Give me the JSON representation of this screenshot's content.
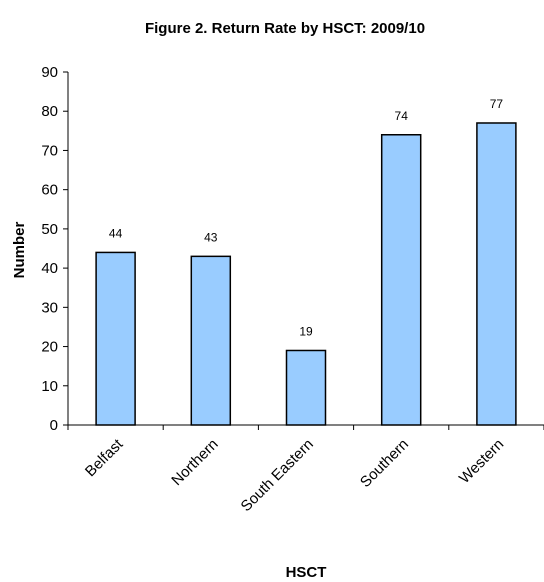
{
  "chart_data": {
    "type": "bar",
    "title": "Figure 2.  Return Rate by HSCT: 2009/10",
    "xlabel": "HSCT",
    "ylabel": "Number",
    "categories": [
      "Belfast",
      "Northern",
      "South Eastern",
      "Southern",
      "Western"
    ],
    "values": [
      44,
      43,
      19,
      74,
      77
    ],
    "data_labels": [
      "44",
      "43",
      "19",
      "74",
      "77"
    ],
    "ylim": [
      0,
      90
    ],
    "yticks": [
      0,
      10,
      20,
      30,
      40,
      50,
      60,
      70,
      80,
      90
    ],
    "ytick_labels": [
      "0",
      "10",
      "20",
      "30",
      "40",
      "50",
      "60",
      "70",
      "80",
      "90"
    ],
    "grid": false,
    "legend": "none",
    "bar_color": "#99ccff"
  }
}
